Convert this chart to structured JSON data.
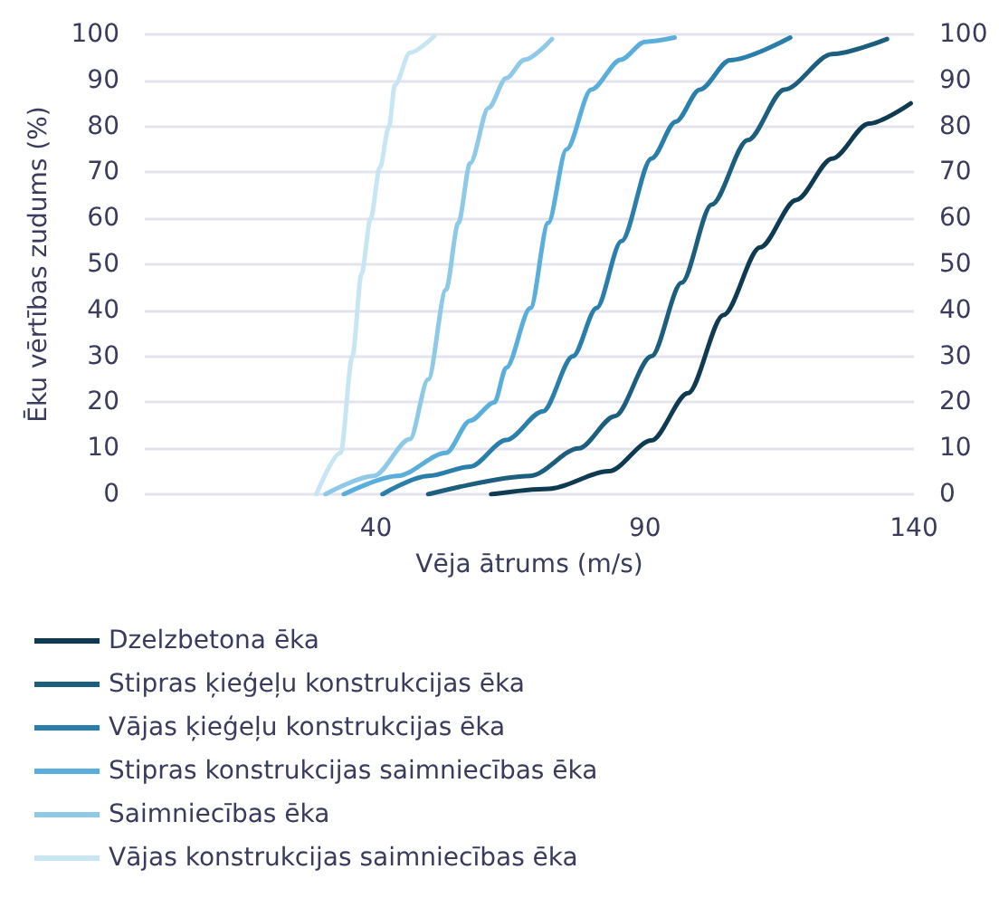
{
  "chart_data": {
    "type": "line",
    "xlabel": "Vēja ātrums (m/s)",
    "ylabel": "Ēku vērtības zudums (%)",
    "xlim": [
      -3,
      140
    ],
    "xticks": [
      40,
      90,
      140
    ],
    "ylim": [
      0,
      100
    ],
    "yticks": [
      0,
      10,
      20,
      30,
      40,
      50,
      60,
      70,
      80,
      90,
      100
    ],
    "y2lim": [
      0,
      100
    ],
    "y2ticks": [
      0,
      10,
      20,
      30,
      40,
      50,
      60,
      70,
      80,
      90,
      100
    ],
    "grid": "y",
    "legend": "bottom",
    "marker": "none",
    "line_style": "solid",
    "series": [
      {
        "name": "Dzelzbetona ēka",
        "color": "#0f3b52",
        "x": [
          61.4,
          72.1,
          83.3,
          91.2,
          98,
          104.6,
          111.4,
          118.1,
          124.8,
          131.6,
          139.4
        ],
        "values": [
          0,
          1.2,
          5,
          11.7,
          22,
          39,
          53.7,
          64,
          73,
          80.6,
          85
        ]
      },
      {
        "name": "Stipras ķieģeļu konstrukcijas ēka",
        "color": "#1b5e7e",
        "x": [
          49.7,
          68.7,
          77.7,
          84.4,
          91.2,
          96.8,
          102.4,
          109.1,
          115.9,
          124.8,
          135
        ],
        "values": [
          0,
          4,
          10,
          17,
          30,
          46,
          63,
          77,
          88,
          95.7,
          99
        ]
      },
      {
        "name": "Vājas ķieģeļu konstrukcijas ēka",
        "color": "#2a7eab",
        "x": [
          41.2,
          49.7,
          57.5,
          64.2,
          71,
          76.6,
          81,
          85.6,
          91.2,
          95.7,
          100.2,
          105.8,
          117
        ],
        "values": [
          0,
          4,
          6,
          11.8,
          18,
          30,
          40.5,
          55,
          73,
          81,
          88,
          94.4,
          99.3
        ]
      },
      {
        "name": "Stipras konstrukcijas saimniecības ēka",
        "color": "#5aaedb",
        "x": [
          34,
          44,
          53,
          57.5,
          62,
          64.2,
          68.7,
          72,
          75.4,
          80,
          85.5,
          90,
          95.5
        ],
        "values": [
          0,
          4,
          9,
          16,
          20,
          27.5,
          40.5,
          59,
          75,
          88,
          94.5,
          98.4,
          99.3
        ]
      },
      {
        "name": "Saimniecības ēka",
        "color": "#8ec9e8",
        "x": [
          30.6,
          39.6,
          46.3,
          49.7,
          53,
          55.3,
          57.5,
          60.9,
          64.2,
          67.6,
          72.7
        ],
        "values": [
          0,
          4,
          12,
          25,
          44.5,
          59,
          72,
          84,
          90.5,
          94.5,
          99
        ]
      },
      {
        "name": "Vājas konstrukcijas saimniecības ēka",
        "color": "#c8e5f4",
        "x": [
          28.9,
          33.4,
          35.6,
          37.3,
          39,
          40.7,
          42.4,
          43.5,
          46.3,
          50.8
        ],
        "values": [
          0,
          9,
          30,
          48,
          60,
          71,
          80,
          89,
          96,
          99.6
        ]
      }
    ]
  }
}
